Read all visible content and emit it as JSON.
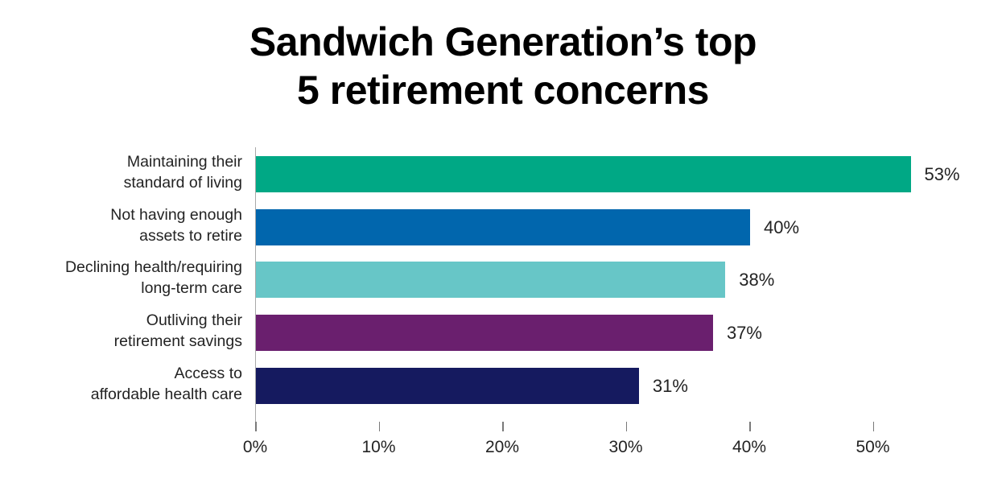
{
  "title_lines": [
    "Sandwich Generation’s top",
    "5 retirement concerns"
  ],
  "colors": {
    "title": "#000000",
    "labels": "#232323",
    "axis_line": "#A8A8A8",
    "tick_mark": "#7A7A7A",
    "background": "#FFFFFF"
  },
  "chart_data": {
    "type": "bar",
    "orientation": "horizontal",
    "title": "Sandwich Generation’s top 5 retirement concerns",
    "categories": [
      "Maintaining their\nstandard of living",
      "Not having enough\nassets to retire",
      "Declining health/requiring\nlong-term care",
      "Outliving their\nretirement savings",
      "Access to\naffordable health care"
    ],
    "values": [
      53,
      40,
      38,
      37,
      31
    ],
    "value_labels": [
      "53%",
      "40%",
      "38%",
      "37%",
      "31%"
    ],
    "bar_colors": [
      "#00A885",
      "#0166AD",
      "#67C6C7",
      "#6A1F6E",
      "#151A5F"
    ],
    "x_tick_values": [
      0,
      10,
      20,
      30,
      40,
      50
    ],
    "x_tick_labels": [
      "0%",
      "10%",
      "20%",
      "30%",
      "40%",
      "50%"
    ],
    "xlim": [
      0,
      53
    ],
    "xlabel": "",
    "ylabel": "",
    "grid": false,
    "legend_position": "none",
    "data_labels": "outside-end"
  }
}
